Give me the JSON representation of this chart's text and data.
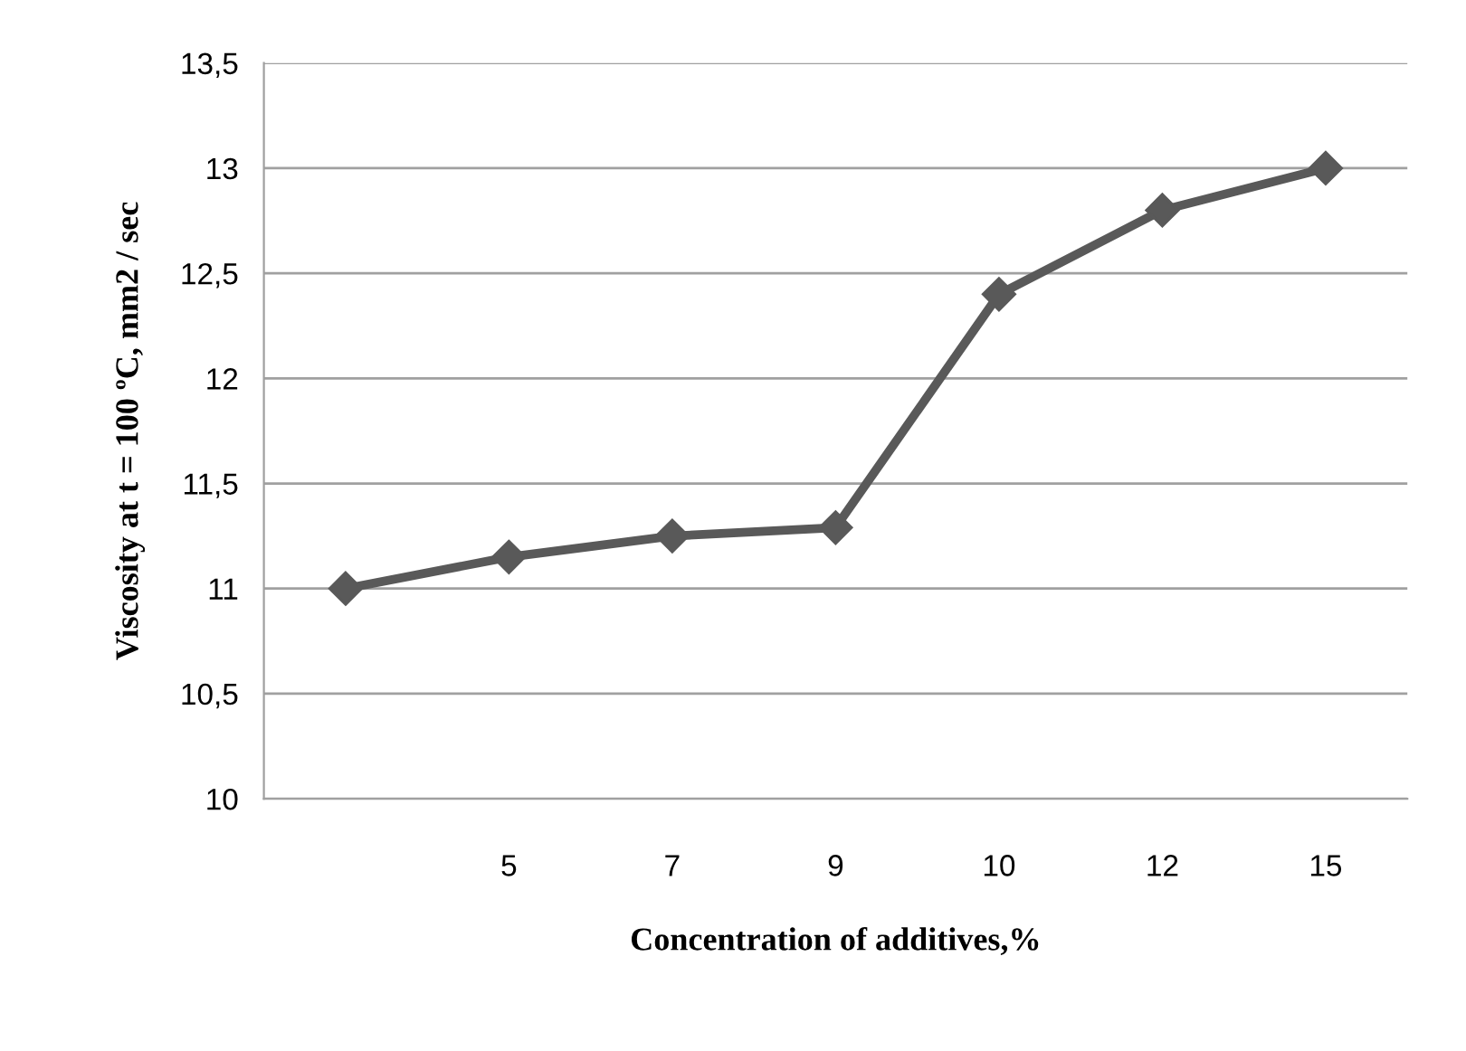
{
  "chart_data": {
    "type": "line",
    "xlabel": "Concentration of additives,%",
    "ylabel": "Viscosity at t = 100 ºC, mm2 / sec",
    "categories": [
      null,
      "5",
      "7",
      "9",
      "10",
      "12",
      "15"
    ],
    "series": [
      {
        "color": "#595959",
        "values": [
          11.0,
          11.15,
          11.25,
          11.29,
          12.4,
          12.8,
          13.0
        ]
      }
    ],
    "ylim": [
      10,
      13.5
    ],
    "yticks": [
      10,
      {
        "value": 10.5,
        "label": "10,5"
      },
      11,
      {
        "value": 11.5,
        "label": "11,5"
      },
      12,
      {
        "value": 12.5,
        "label": "12,5"
      },
      13,
      {
        "value": 13.5,
        "label": "13,5"
      }
    ],
    "grid": "y",
    "marker": "diamond",
    "line_style": "solid",
    "legend": false
  }
}
